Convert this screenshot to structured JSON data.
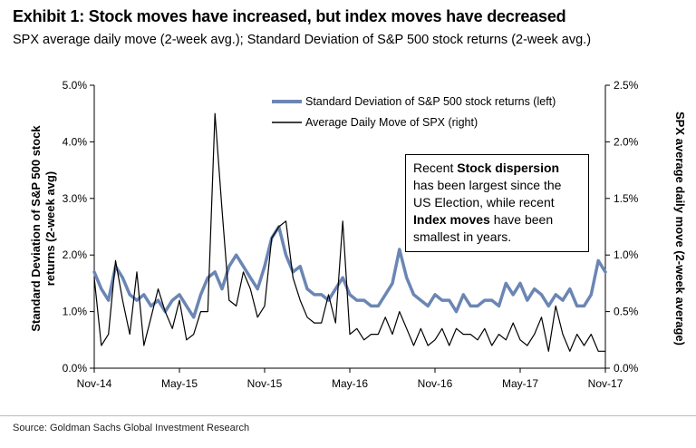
{
  "header": {
    "title": "Exhibit 1: Stock moves have increased, but index moves have decreased",
    "subtitle": "SPX average daily move (2-week avg.); Standard Deviation of S&P 500 stock returns (2-week avg.)"
  },
  "footer": {
    "source": "Source: Goldman Sachs Global Investment Research"
  },
  "callout": {
    "t1": "Recent ",
    "t2": "Stock dispersion",
    "t3": " has been largest since the US Election, while recent ",
    "t4": "Index moves",
    "t5": " have been smallest in years."
  },
  "colors": {
    "std_series": "#6b86b4",
    "spx_series": "#000000"
  },
  "chart_data": {
    "type": "line",
    "title": "Exhibit 1: Stock moves have increased, but index moves have decreased",
    "subtitle": "SPX average daily move (2-week avg.); Standard Deviation of S&P 500 stock returns (2-week avg.)",
    "xlabel": "",
    "ylabel_left": "Standard Deviation of S&P 500 stock returns (2-week avg)",
    "ylabel_right": "SPX average daily move (2-week average)",
    "x_tick_labels": [
      "Nov-14",
      "May-15",
      "Nov-15",
      "May-16",
      "Nov-16",
      "May-17",
      "Nov-17"
    ],
    "y_left_ticks": [
      "0.0%",
      "1.0%",
      "2.0%",
      "3.0%",
      "4.0%",
      "5.0%"
    ],
    "y_right_ticks": [
      "0.0%",
      "0.5%",
      "1.0%",
      "1.5%",
      "2.0%",
      "2.5%"
    ],
    "ylim_left": [
      0,
      5
    ],
    "ylim_right": [
      0,
      2.5
    ],
    "xlim_months": [
      0,
      36
    ],
    "legend_position": "top-center",
    "grid": false,
    "series": [
      {
        "name": "Standard Deviation of S&P 500 stock returns (left)",
        "axis": "left",
        "x": [
          0,
          0.5,
          1,
          1.5,
          2,
          2.5,
          3,
          3.5,
          4,
          4.5,
          5,
          5.5,
          6,
          6.5,
          7,
          7.5,
          8,
          8.5,
          9,
          9.5,
          10,
          10.5,
          11,
          11.5,
          12,
          12.5,
          13,
          13.5,
          14,
          14.5,
          15,
          15.5,
          16,
          16.5,
          17,
          17.5,
          18,
          18.5,
          19,
          19.5,
          20,
          20.5,
          21,
          21.5,
          22,
          22.5,
          23,
          23.5,
          24,
          24.5,
          25,
          25.5,
          26,
          26.5,
          27,
          27.5,
          28,
          28.5,
          29,
          29.5,
          30,
          30.5,
          31,
          31.5,
          32,
          32.5,
          33,
          33.5,
          34,
          34.5,
          35,
          35.5,
          36
        ],
        "values": [
          1.7,
          1.4,
          1.2,
          1.8,
          1.6,
          1.3,
          1.2,
          1.3,
          1.1,
          1.2,
          1.0,
          1.2,
          1.3,
          1.1,
          0.9,
          1.3,
          1.6,
          1.7,
          1.4,
          1.8,
          2.0,
          1.8,
          1.6,
          1.4,
          1.8,
          2.3,
          2.5,
          2.0,
          1.7,
          1.8,
          1.4,
          1.3,
          1.3,
          1.2,
          1.4,
          1.6,
          1.3,
          1.2,
          1.2,
          1.1,
          1.1,
          1.3,
          1.5,
          2.1,
          1.6,
          1.3,
          1.2,
          1.1,
          1.3,
          1.2,
          1.2,
          1.0,
          1.3,
          1.1,
          1.1,
          1.2,
          1.2,
          1.1,
          1.5,
          1.3,
          1.5,
          1.2,
          1.4,
          1.3,
          1.1,
          1.3,
          1.2,
          1.4,
          1.1,
          1.1,
          1.3,
          1.9,
          1.7
        ]
      },
      {
        "name": "Average Daily Move of SPX (right)",
        "axis": "right",
        "x": [
          0,
          0.5,
          1,
          1.5,
          2,
          2.5,
          3,
          3.5,
          4,
          4.5,
          5,
          5.5,
          6,
          6.5,
          7,
          7.5,
          8,
          8.5,
          9,
          9.5,
          10,
          10.5,
          11,
          11.5,
          12,
          12.5,
          13,
          13.5,
          14,
          14.5,
          15,
          15.5,
          16,
          16.5,
          17,
          17.5,
          18,
          18.5,
          19,
          19.5,
          20,
          20.5,
          21,
          21.5,
          22,
          22.5,
          23,
          23.5,
          24,
          24.5,
          25,
          25.5,
          26,
          26.5,
          27,
          27.5,
          28,
          28.5,
          29,
          29.5,
          30,
          30.5,
          31,
          31.5,
          32,
          32.5,
          33,
          33.5,
          34,
          34.5,
          35,
          35.5,
          36
        ],
        "values": [
          0.8,
          0.2,
          0.3,
          0.95,
          0.6,
          0.3,
          0.85,
          0.2,
          0.45,
          0.7,
          0.5,
          0.35,
          0.6,
          0.25,
          0.3,
          0.5,
          0.5,
          2.25,
          1.4,
          0.6,
          0.55,
          0.85,
          0.7,
          0.45,
          0.55,
          1.15,
          1.25,
          1.3,
          0.8,
          0.6,
          0.45,
          0.4,
          0.4,
          0.65,
          0.4,
          1.3,
          0.3,
          0.35,
          0.25,
          0.3,
          0.3,
          0.45,
          0.3,
          0.5,
          0.35,
          0.2,
          0.35,
          0.2,
          0.25,
          0.35,
          0.2,
          0.35,
          0.3,
          0.3,
          0.25,
          0.35,
          0.2,
          0.3,
          0.25,
          0.4,
          0.25,
          0.2,
          0.3,
          0.45,
          0.15,
          0.55,
          0.3,
          0.15,
          0.3,
          0.2,
          0.3,
          0.15,
          0.15
        ]
      }
    ]
  }
}
